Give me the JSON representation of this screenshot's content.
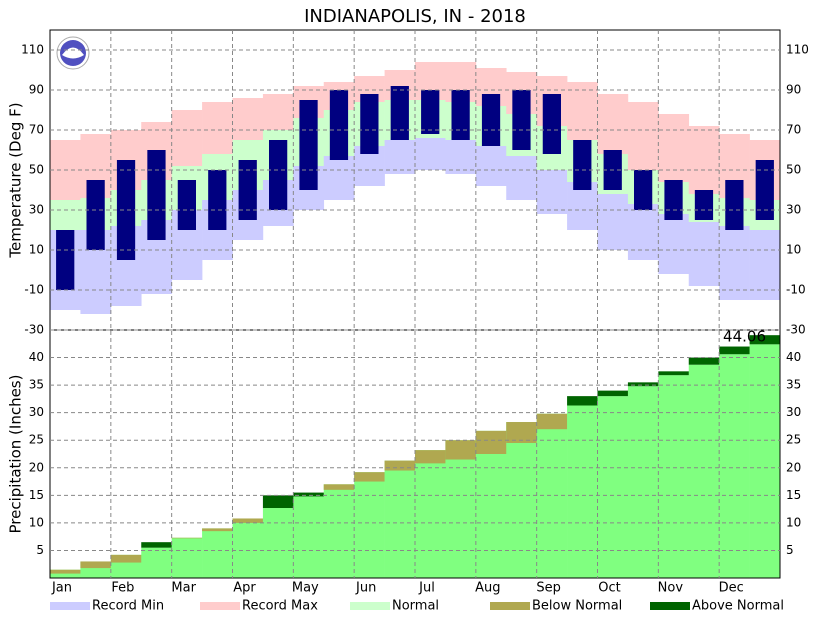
{
  "chart_data": [
    {
      "type": "temperature-range",
      "title": "INDIANAPOLIS, IN - 2018",
      "ylabel": "Temperature (Deg F)",
      "ylim": [
        -30,
        120
      ],
      "yticks": [
        -30,
        -10,
        10,
        30,
        50,
        70,
        90,
        110
      ],
      "grid": true,
      "series": [
        {
          "name": "Record Min",
          "color": "#ccccff",
          "values": [
            -20,
            -22,
            -18,
            -12,
            -5,
            5,
            15,
            22,
            30,
            35,
            42,
            48,
            50,
            48,
            42,
            35,
            28,
            20,
            10,
            5,
            -2,
            -8,
            -15,
            -15
          ]
        },
        {
          "name": "Record Max",
          "color": "#ffcccc",
          "values": [
            65,
            68,
            70,
            74,
            80,
            84,
            86,
            88,
            92,
            94,
            97,
            100,
            104,
            104,
            101,
            99,
            97,
            94,
            88,
            84,
            78,
            72,
            68,
            65
          ]
        },
        {
          "name": "Normal",
          "color": "#ccffcc",
          "low": [
            20,
            20,
            22,
            25,
            30,
            35,
            40,
            45,
            52,
            57,
            62,
            65,
            66,
            65,
            62,
            57,
            50,
            44,
            38,
            33,
            28,
            24,
            22,
            20
          ],
          "high": [
            35,
            36,
            40,
            45,
            52,
            58,
            65,
            70,
            76,
            80,
            84,
            85,
            85,
            84,
            82,
            78,
            72,
            65,
            58,
            50,
            44,
            38,
            36,
            35
          ]
        },
        {
          "color": "#000080",
          "low": [
            -10,
            10,
            5,
            15,
            20,
            20,
            25,
            30,
            40,
            55,
            58,
            65,
            68,
            65,
            62,
            60,
            58,
            40,
            40,
            30,
            25,
            25,
            20,
            25
          ],
          "high": [
            20,
            45,
            55,
            60,
            45,
            50,
            55,
            65,
            85,
            90,
            88,
            92,
            90,
            90,
            88,
            90,
            88,
            65,
            60,
            50,
            45,
            40,
            45,
            55
          ]
        }
      ]
    },
    {
      "type": "precipitation",
      "ylabel": "Precipitation (Inches)",
      "categories": [
        "Jan",
        "Feb",
        "Mar",
        "Apr",
        "May",
        "Jun",
        "Jul",
        "Aug",
        "Sep",
        "Oct",
        "Nov",
        "Dec"
      ],
      "ylim": [
        0,
        45
      ],
      "yticks": [
        5,
        10,
        15,
        20,
        25,
        30,
        35,
        40
      ],
      "grid": true,
      "annotation": "44.06",
      "normal": {
        "color": "#80ff80",
        "values": [
          1.5,
          3,
          4.2,
          5.5,
          7.3,
          9,
          10.8,
          12.7,
          14.8,
          17,
          19.2,
          21.3,
          23.2,
          25,
          26.7,
          28.3,
          29.8,
          31.3,
          33,
          34.8,
          36.8,
          38.7,
          40.6,
          42.4
        ]
      },
      "observed": {
        "values": [
          0.8,
          1.8,
          2.8,
          6.5,
          7.2,
          8.5,
          10,
          15,
          15.5,
          16,
          17.5,
          19.5,
          20.8,
          21.5,
          22.5,
          24.5,
          27,
          33,
          34,
          35.5,
          37.5,
          40,
          42,
          44.06
        ],
        "below": {
          "name": "Below Normal",
          "color": "#b0a850"
        },
        "above": {
          "name": "Above Normal",
          "color": "#006400"
        }
      }
    }
  ]
}
